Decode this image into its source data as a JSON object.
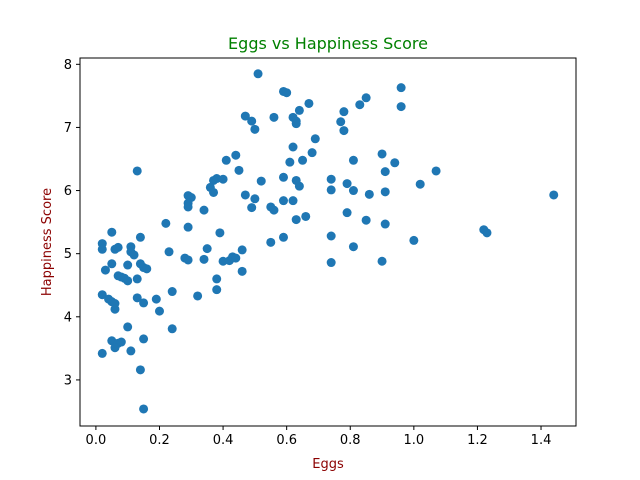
{
  "chart_data": {
    "type": "scatter",
    "title": "Eggs vs Happiness Score",
    "xlabel": "Eggs",
    "ylabel": "Happiness Score",
    "xlim": [
      -0.05,
      1.51
    ],
    "ylim": [
      2.27,
      8.1
    ],
    "xticks": [
      0.0,
      0.2,
      0.4,
      0.6,
      0.8,
      1.0,
      1.2,
      1.4
    ],
    "xtick_labels": [
      "0.0",
      "0.2",
      "0.4",
      "0.6",
      "0.8",
      "1.0",
      "1.2",
      "1.4"
    ],
    "yticks": [
      3,
      4,
      5,
      6,
      7,
      8
    ],
    "ytick_labels": [
      "3",
      "4",
      "5",
      "6",
      "7",
      "8"
    ],
    "grid": false,
    "legend": "none",
    "colors": {
      "points": "#1f77b4",
      "title": "#008000",
      "axis_labels": "#8b0000"
    },
    "points": [
      [
        0.51,
        7.85
      ],
      [
        0.59,
        7.57
      ],
      [
        0.6,
        7.55
      ],
      [
        0.96,
        7.63
      ],
      [
        0.96,
        7.33
      ],
      [
        0.85,
        7.47
      ],
      [
        0.83,
        7.36
      ],
      [
        0.67,
        7.38
      ],
      [
        0.78,
        7.25
      ],
      [
        0.47,
        7.18
      ],
      [
        0.56,
        7.16
      ],
      [
        0.62,
        7.16
      ],
      [
        0.63,
        7.1
      ],
      [
        0.63,
        7.06
      ],
      [
        0.49,
        7.1
      ],
      [
        0.5,
        6.97
      ],
      [
        0.64,
        7.27
      ],
      [
        0.77,
        7.09
      ],
      [
        0.78,
        6.95
      ],
      [
        0.69,
        6.82
      ],
      [
        0.62,
        6.69
      ],
      [
        0.9,
        6.58
      ],
      [
        0.68,
        6.6
      ],
      [
        0.65,
        6.48
      ],
      [
        0.61,
        6.45
      ],
      [
        0.44,
        6.56
      ],
      [
        0.41,
        6.48
      ],
      [
        0.81,
        6.48
      ],
      [
        0.94,
        6.44
      ],
      [
        0.91,
        6.3
      ],
      [
        1.07,
        6.31
      ],
      [
        0.13,
        6.31
      ],
      [
        0.45,
        6.32
      ],
      [
        0.38,
        6.19
      ],
      [
        0.4,
        6.18
      ],
      [
        0.37,
        6.16
      ],
      [
        0.52,
        6.15
      ],
      [
        0.59,
        6.21
      ],
      [
        0.63,
        6.16
      ],
      [
        0.64,
        6.07
      ],
      [
        0.74,
        6.18
      ],
      [
        0.74,
        6.01
      ],
      [
        0.79,
        6.11
      ],
      [
        0.81,
        6.0
      ],
      [
        0.86,
        5.94
      ],
      [
        0.91,
        5.98
      ],
      [
        1.02,
        6.1
      ],
      [
        1.44,
        5.93
      ],
      [
        0.36,
        6.05
      ],
      [
        0.37,
        5.97
      ],
      [
        0.29,
        5.92
      ],
      [
        0.3,
        5.89
      ],
      [
        0.29,
        5.8
      ],
      [
        0.29,
        5.74
      ],
      [
        0.34,
        5.69
      ],
      [
        0.47,
        5.93
      ],
      [
        0.5,
        5.87
      ],
      [
        0.49,
        5.73
      ],
      [
        0.55,
        5.74
      ],
      [
        0.56,
        5.69
      ],
      [
        0.59,
        5.84
      ],
      [
        0.62,
        5.84
      ],
      [
        0.79,
        5.65
      ],
      [
        0.66,
        5.59
      ],
      [
        0.63,
        5.54
      ],
      [
        0.85,
        5.53
      ],
      [
        0.91,
        5.47
      ],
      [
        0.22,
        5.48
      ],
      [
        0.29,
        5.42
      ],
      [
        0.59,
        5.26
      ],
      [
        0.55,
        5.18
      ],
      [
        0.74,
        5.28
      ],
      [
        0.81,
        5.11
      ],
      [
        1.0,
        5.21
      ],
      [
        1.22,
        5.38
      ],
      [
        1.23,
        5.33
      ],
      [
        0.02,
        5.16
      ],
      [
        0.02,
        5.07
      ],
      [
        0.05,
        5.34
      ],
      [
        0.06,
        5.07
      ],
      [
        0.07,
        5.1
      ],
      [
        0.11,
        5.11
      ],
      [
        0.11,
        5.03
      ],
      [
        0.12,
        4.98
      ],
      [
        0.14,
        5.26
      ],
      [
        0.23,
        5.03
      ],
      [
        0.35,
        5.08
      ],
      [
        0.39,
        5.33
      ],
      [
        0.46,
        5.06
      ],
      [
        0.05,
        4.84
      ],
      [
        0.1,
        4.82
      ],
      [
        0.14,
        4.84
      ],
      [
        0.15,
        4.78
      ],
      [
        0.16,
        4.76
      ],
      [
        0.03,
        4.74
      ],
      [
        0.07,
        4.65
      ],
      [
        0.08,
        4.63
      ],
      [
        0.09,
        4.61
      ],
      [
        0.1,
        4.57
      ],
      [
        0.13,
        4.6
      ],
      [
        0.28,
        4.93
      ],
      [
        0.29,
        4.9
      ],
      [
        0.34,
        4.91
      ],
      [
        0.4,
        4.88
      ],
      [
        0.42,
        4.89
      ],
      [
        0.43,
        4.95
      ],
      [
        0.44,
        4.93
      ],
      [
        0.46,
        4.72
      ],
      [
        0.74,
        4.86
      ],
      [
        0.9,
        4.88
      ],
      [
        0.38,
        4.6
      ],
      [
        0.38,
        4.43
      ],
      [
        0.24,
        4.4
      ],
      [
        0.32,
        4.33
      ],
      [
        0.02,
        4.35
      ],
      [
        0.04,
        4.28
      ],
      [
        0.05,
        4.24
      ],
      [
        0.06,
        4.21
      ],
      [
        0.06,
        4.12
      ],
      [
        0.13,
        4.3
      ],
      [
        0.15,
        4.22
      ],
      [
        0.19,
        4.28
      ],
      [
        0.2,
        4.09
      ],
      [
        0.1,
        3.84
      ],
      [
        0.24,
        3.81
      ],
      [
        0.05,
        3.62
      ],
      [
        0.07,
        3.58
      ],
      [
        0.08,
        3.6
      ],
      [
        0.06,
        3.51
      ],
      [
        0.11,
        3.46
      ],
      [
        0.15,
        3.65
      ],
      [
        0.02,
        3.42
      ],
      [
        0.14,
        3.16
      ],
      [
        0.15,
        2.54
      ]
    ]
  }
}
